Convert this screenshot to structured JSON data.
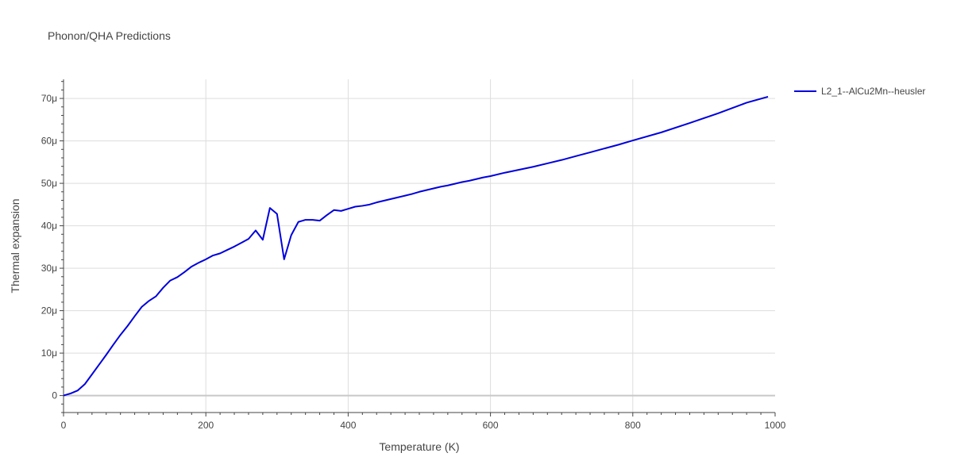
{
  "chart_data": {
    "type": "line",
    "title": "Phonon/QHA Predictions",
    "xlabel": "Temperature (K)",
    "ylabel": "Thermal expansion",
    "xlim": [
      0,
      1000
    ],
    "ylim": [
      -4e-06,
      7.45e-05
    ],
    "x_ticks": [
      0,
      200,
      400,
      600,
      800,
      1000
    ],
    "x_tick_labels": [
      "0",
      "200",
      "400",
      "600",
      "800",
      "1000"
    ],
    "y_ticks": [
      0,
      1e-05,
      2e-05,
      3e-05,
      4e-05,
      5e-05,
      6e-05,
      7e-05
    ],
    "y_tick_labels": [
      "0",
      "10μ",
      "20μ",
      "30μ",
      "40μ",
      "50μ",
      "60μ",
      "70μ"
    ],
    "grid": true,
    "legend_position": "top-right",
    "colors": {
      "series": "#0000dd",
      "grid": "#dddddd",
      "zeroline": "#c8c8c8",
      "text": "#444444"
    },
    "series": [
      {
        "name": "L2_1--AlCu2Mn--heusler",
        "x": [
          0,
          10,
          20,
          30,
          40,
          50,
          60,
          70,
          80,
          90,
          100,
          110,
          120,
          130,
          140,
          150,
          160,
          170,
          180,
          190,
          200,
          210,
          220,
          230,
          240,
          250,
          260,
          270,
          280,
          290,
          300,
          310,
          320,
          330,
          340,
          350,
          360,
          370,
          380,
          390,
          400,
          410,
          420,
          430,
          440,
          450,
          460,
          470,
          480,
          490,
          500,
          510,
          520,
          530,
          540,
          550,
          560,
          570,
          580,
          590,
          600,
          620,
          640,
          660,
          680,
          700,
          720,
          740,
          760,
          780,
          800,
          840,
          880,
          920,
          960,
          990
        ],
        "y": [
          0,
          5e-07,
          1.2e-06,
          2.7e-06,
          5e-06,
          7.3e-06,
          9.6e-06,
          1.2e-05,
          1.43e-05,
          1.64e-05,
          1.87e-05,
          2.09e-05,
          2.23e-05,
          2.34e-05,
          2.54e-05,
          2.71e-05,
          2.79e-05,
          2.91e-05,
          3.04e-05,
          3.13e-05,
          3.21e-05,
          3.3e-05,
          3.35e-05,
          3.43e-05,
          3.51e-05,
          3.6e-05,
          3.69e-05,
          3.89e-05,
          3.67e-05,
          4.42e-05,
          4.28e-05,
          3.21e-05,
          3.78e-05,
          4.09e-05,
          4.14e-05,
          4.14e-05,
          4.12e-05,
          4.25e-05,
          4.37e-05,
          4.35e-05,
          4.4e-05,
          4.45e-05,
          4.47e-05,
          4.5e-05,
          4.55e-05,
          4.59e-05,
          4.63e-05,
          4.67e-05,
          4.71e-05,
          4.75e-05,
          4.8e-05,
          4.84e-05,
          4.88e-05,
          4.92e-05,
          4.95e-05,
          4.99e-05,
          5.03e-05,
          5.06e-05,
          5.1e-05,
          5.14e-05,
          5.17e-05,
          5.25e-05,
          5.32e-05,
          5.39e-05,
          5.47e-05,
          5.55e-05,
          5.64e-05,
          5.73e-05,
          5.82e-05,
          5.91e-05,
          6.01e-05,
          6.2e-05,
          6.42e-05,
          6.65e-05,
          6.9e-05,
          7.04e-05
        ]
      }
    ]
  }
}
